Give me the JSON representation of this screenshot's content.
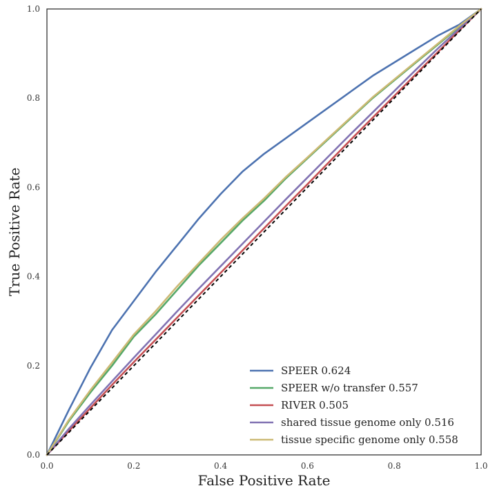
{
  "chart_data": {
    "type": "line",
    "title": "",
    "xlabel": "False Positive Rate",
    "ylabel": "True Positive Rate",
    "xlim": [
      0.0,
      1.0
    ],
    "ylim": [
      0.0,
      1.0
    ],
    "xticks": [
      0.0,
      0.2,
      0.4,
      0.6,
      0.8,
      1.0
    ],
    "yticks": [
      0.0,
      0.2,
      0.4,
      0.6,
      0.8,
      1.0
    ],
    "xtick_labels": [
      "0.0",
      "0.2",
      "0.4",
      "0.6",
      "0.8",
      "1.0"
    ],
    "ytick_labels": [
      "0.0",
      "0.2",
      "0.4",
      "0.6",
      "0.8",
      "1.0"
    ],
    "grid": false,
    "legend_position": "lower-right",
    "reference_line": {
      "x": [
        0.0,
        1.0
      ],
      "y": [
        0.0,
        1.0
      ],
      "color": "#000000",
      "style": "dashed"
    },
    "series": [
      {
        "name": "SPEER 0.624",
        "color": "#4c72b0",
        "x": [
          0.0,
          0.05,
          0.1,
          0.15,
          0.2,
          0.25,
          0.3,
          0.35,
          0.4,
          0.45,
          0.5,
          0.55,
          0.6,
          0.65,
          0.7,
          0.75,
          0.8,
          0.85,
          0.9,
          0.95,
          1.0
        ],
        "y": [
          0.0,
          0.1,
          0.195,
          0.28,
          0.345,
          0.41,
          0.47,
          0.53,
          0.585,
          0.635,
          0.675,
          0.71,
          0.745,
          0.78,
          0.815,
          0.85,
          0.88,
          0.91,
          0.94,
          0.965,
          1.0
        ]
      },
      {
        "name": "SPEER w/o transfer 0.557",
        "color": "#55a868",
        "x": [
          0.0,
          0.05,
          0.1,
          0.15,
          0.2,
          0.25,
          0.3,
          0.35,
          0.4,
          0.45,
          0.5,
          0.55,
          0.6,
          0.65,
          0.7,
          0.75,
          0.8,
          0.85,
          0.9,
          0.95,
          1.0
        ],
        "y": [
          0.0,
          0.075,
          0.14,
          0.2,
          0.265,
          0.315,
          0.37,
          0.425,
          0.475,
          0.525,
          0.57,
          0.62,
          0.665,
          0.71,
          0.755,
          0.8,
          0.84,
          0.88,
          0.92,
          0.96,
          1.0
        ]
      },
      {
        "name": "RIVER 0.505",
        "color": "#c44e52",
        "x": [
          0.0,
          0.05,
          0.1,
          0.15,
          0.2,
          0.25,
          0.3,
          0.35,
          0.4,
          0.45,
          0.5,
          0.55,
          0.6,
          0.65,
          0.7,
          0.75,
          0.8,
          0.85,
          0.9,
          0.95,
          1.0
        ],
        "y": [
          0.0,
          0.053,
          0.105,
          0.157,
          0.208,
          0.258,
          0.308,
          0.358,
          0.408,
          0.458,
          0.508,
          0.558,
          0.607,
          0.657,
          0.707,
          0.756,
          0.805,
          0.854,
          0.903,
          0.952,
          1.0
        ]
      },
      {
        "name": "shared tissue genome only 0.516",
        "color": "#8172b2",
        "x": [
          0.0,
          0.05,
          0.1,
          0.15,
          0.2,
          0.25,
          0.3,
          0.35,
          0.4,
          0.45,
          0.5,
          0.55,
          0.6,
          0.65,
          0.7,
          0.75,
          0.8,
          0.85,
          0.9,
          0.95,
          1.0
        ],
        "y": [
          0.0,
          0.058,
          0.112,
          0.165,
          0.218,
          0.27,
          0.322,
          0.373,
          0.423,
          0.473,
          0.523,
          0.573,
          0.622,
          0.671,
          0.72,
          0.768,
          0.816,
          0.864,
          0.911,
          0.956,
          1.0
        ]
      },
      {
        "name": "tissue specific genome only 0.558",
        "color": "#ccb974",
        "x": [
          0.0,
          0.05,
          0.1,
          0.15,
          0.2,
          0.25,
          0.3,
          0.35,
          0.4,
          0.45,
          0.5,
          0.55,
          0.6,
          0.65,
          0.7,
          0.75,
          0.8,
          0.85,
          0.9,
          0.95,
          1.0
        ],
        "y": [
          0.0,
          0.078,
          0.145,
          0.207,
          0.27,
          0.322,
          0.378,
          0.43,
          0.482,
          0.53,
          0.575,
          0.623,
          0.667,
          0.712,
          0.757,
          0.802,
          0.842,
          0.882,
          0.922,
          0.962,
          1.0
        ]
      }
    ]
  }
}
